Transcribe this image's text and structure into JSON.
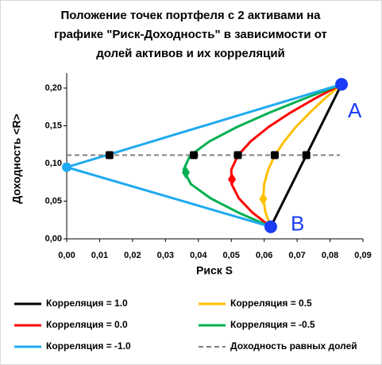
{
  "chart_data": {
    "type": "line",
    "title": [
      "Положение точек портфеля с 2 активами на",
      "графике \"Риск-Доходность\" в зависимости от",
      "долей активов и их корреляций"
    ],
    "x_label": "Риск S",
    "y_label": "Доходность <R>",
    "xlim": [
      0,
      0.09
    ],
    "xticks": [
      {
        "value": 0,
        "label": "0,00"
      },
      {
        "value": 0.01,
        "label": "0,01"
      },
      {
        "value": 0.02,
        "label": "0,02"
      },
      {
        "value": 0.03,
        "label": "0,03"
      },
      {
        "value": 0.04,
        "label": "0,04"
      },
      {
        "value": 0.05,
        "label": "0,05"
      },
      {
        "value": 0.06,
        "label": "0,06"
      },
      {
        "value": 0.07,
        "label": "0,07"
      },
      {
        "value": 0.08,
        "label": "0,08"
      },
      {
        "value": 0.09,
        "label": "0,09"
      }
    ],
    "ylim": [
      0,
      0.22
    ],
    "yticks": [
      {
        "value": 0,
        "label": "0,00"
      },
      {
        "value": 0.05,
        "label": "0,05"
      },
      {
        "value": 0.1,
        "label": "0,10"
      },
      {
        "value": 0.15,
        "label": "0,15"
      },
      {
        "value": 0.2,
        "label": "0,20"
      }
    ],
    "grid": false,
    "series": [
      {
        "name": "Корреляция = 1.0",
        "color": "#000000",
        "x": [
          0.062,
          0.0835
        ],
        "values": [
          0.016,
          0.205
        ],
        "equal_point": {
          "x": 0.0728,
          "y": 0.111
        }
      },
      {
        "name": "Корреляция = 0.5",
        "color": "#ffc000",
        "x": [
          0.062,
          0.0604,
          0.0597,
          0.06,
          0.0612,
          0.0632,
          0.0661,
          0.0696,
          0.0738,
          0.0784,
          0.0835
        ],
        "values": [
          0.016,
          0.0349,
          0.0538,
          0.0727,
          0.0916,
          0.1105,
          0.1294,
          0.1483,
          0.1672,
          0.1861,
          0.205
        ],
        "equal_point": {
          "x": 0.0632,
          "y": 0.111
        },
        "min_point": {
          "x": 0.0597,
          "y": 0.053
        },
        "min_marker": "diamond"
      },
      {
        "name": "Корреляция = 0.0",
        "color": "#ff0000",
        "x": [
          0.062,
          0.0564,
          0.0523,
          0.0501,
          0.05,
          0.052,
          0.0559,
          0.0613,
          0.0679,
          0.0754,
          0.0835
        ],
        "values": [
          0.016,
          0.0349,
          0.0538,
          0.0727,
          0.0916,
          0.1105,
          0.1294,
          0.1483,
          0.1672,
          0.1861,
          0.205
        ],
        "equal_point": {
          "x": 0.052,
          "y": 0.111
        },
        "min_point": {
          "x": 0.0502,
          "y": 0.079
        },
        "min_marker": "diamond"
      },
      {
        "name": "Корреляция = -0.5",
        "color": "#00b050",
        "x": [
          0.062,
          0.0521,
          0.0437,
          0.0377,
          0.0355,
          0.0375,
          0.0434,
          0.0517,
          0.0615,
          0.0722,
          0.0835
        ],
        "values": [
          0.016,
          0.0349,
          0.0538,
          0.0727,
          0.0916,
          0.1105,
          0.1294,
          0.1483,
          0.1672,
          0.1861,
          0.205
        ],
        "equal_point": {
          "x": 0.0386,
          "y": 0.111
        },
        "min_point": {
          "x": 0.0362,
          "y": 0.088
        },
        "min_marker": "diamond"
      },
      {
        "name": "Корреляция = -1.0",
        "color": "#1eaaf1",
        "x": [
          0.062,
          0,
          0.0835
        ],
        "values": [
          0.016,
          0.095,
          0.205
        ],
        "equal_point": {
          "x": 0.013,
          "y": 0.111
        },
        "min_point": {
          "x": 0,
          "y": 0.095
        },
        "min_marker": "circle"
      },
      {
        "name": "Доходность равных долей",
        "color": "#808080",
        "dashed": true,
        "x": [
          0,
          0.083
        ],
        "values": [
          0.111,
          0.111
        ]
      }
    ],
    "points": [
      {
        "label": "A",
        "x": 0.0835,
        "y": 0.205,
        "color": "#1a3cf5"
      },
      {
        "label": "B",
        "x": 0.062,
        "y": 0.016,
        "color": "#1a3cf5"
      }
    ]
  }
}
